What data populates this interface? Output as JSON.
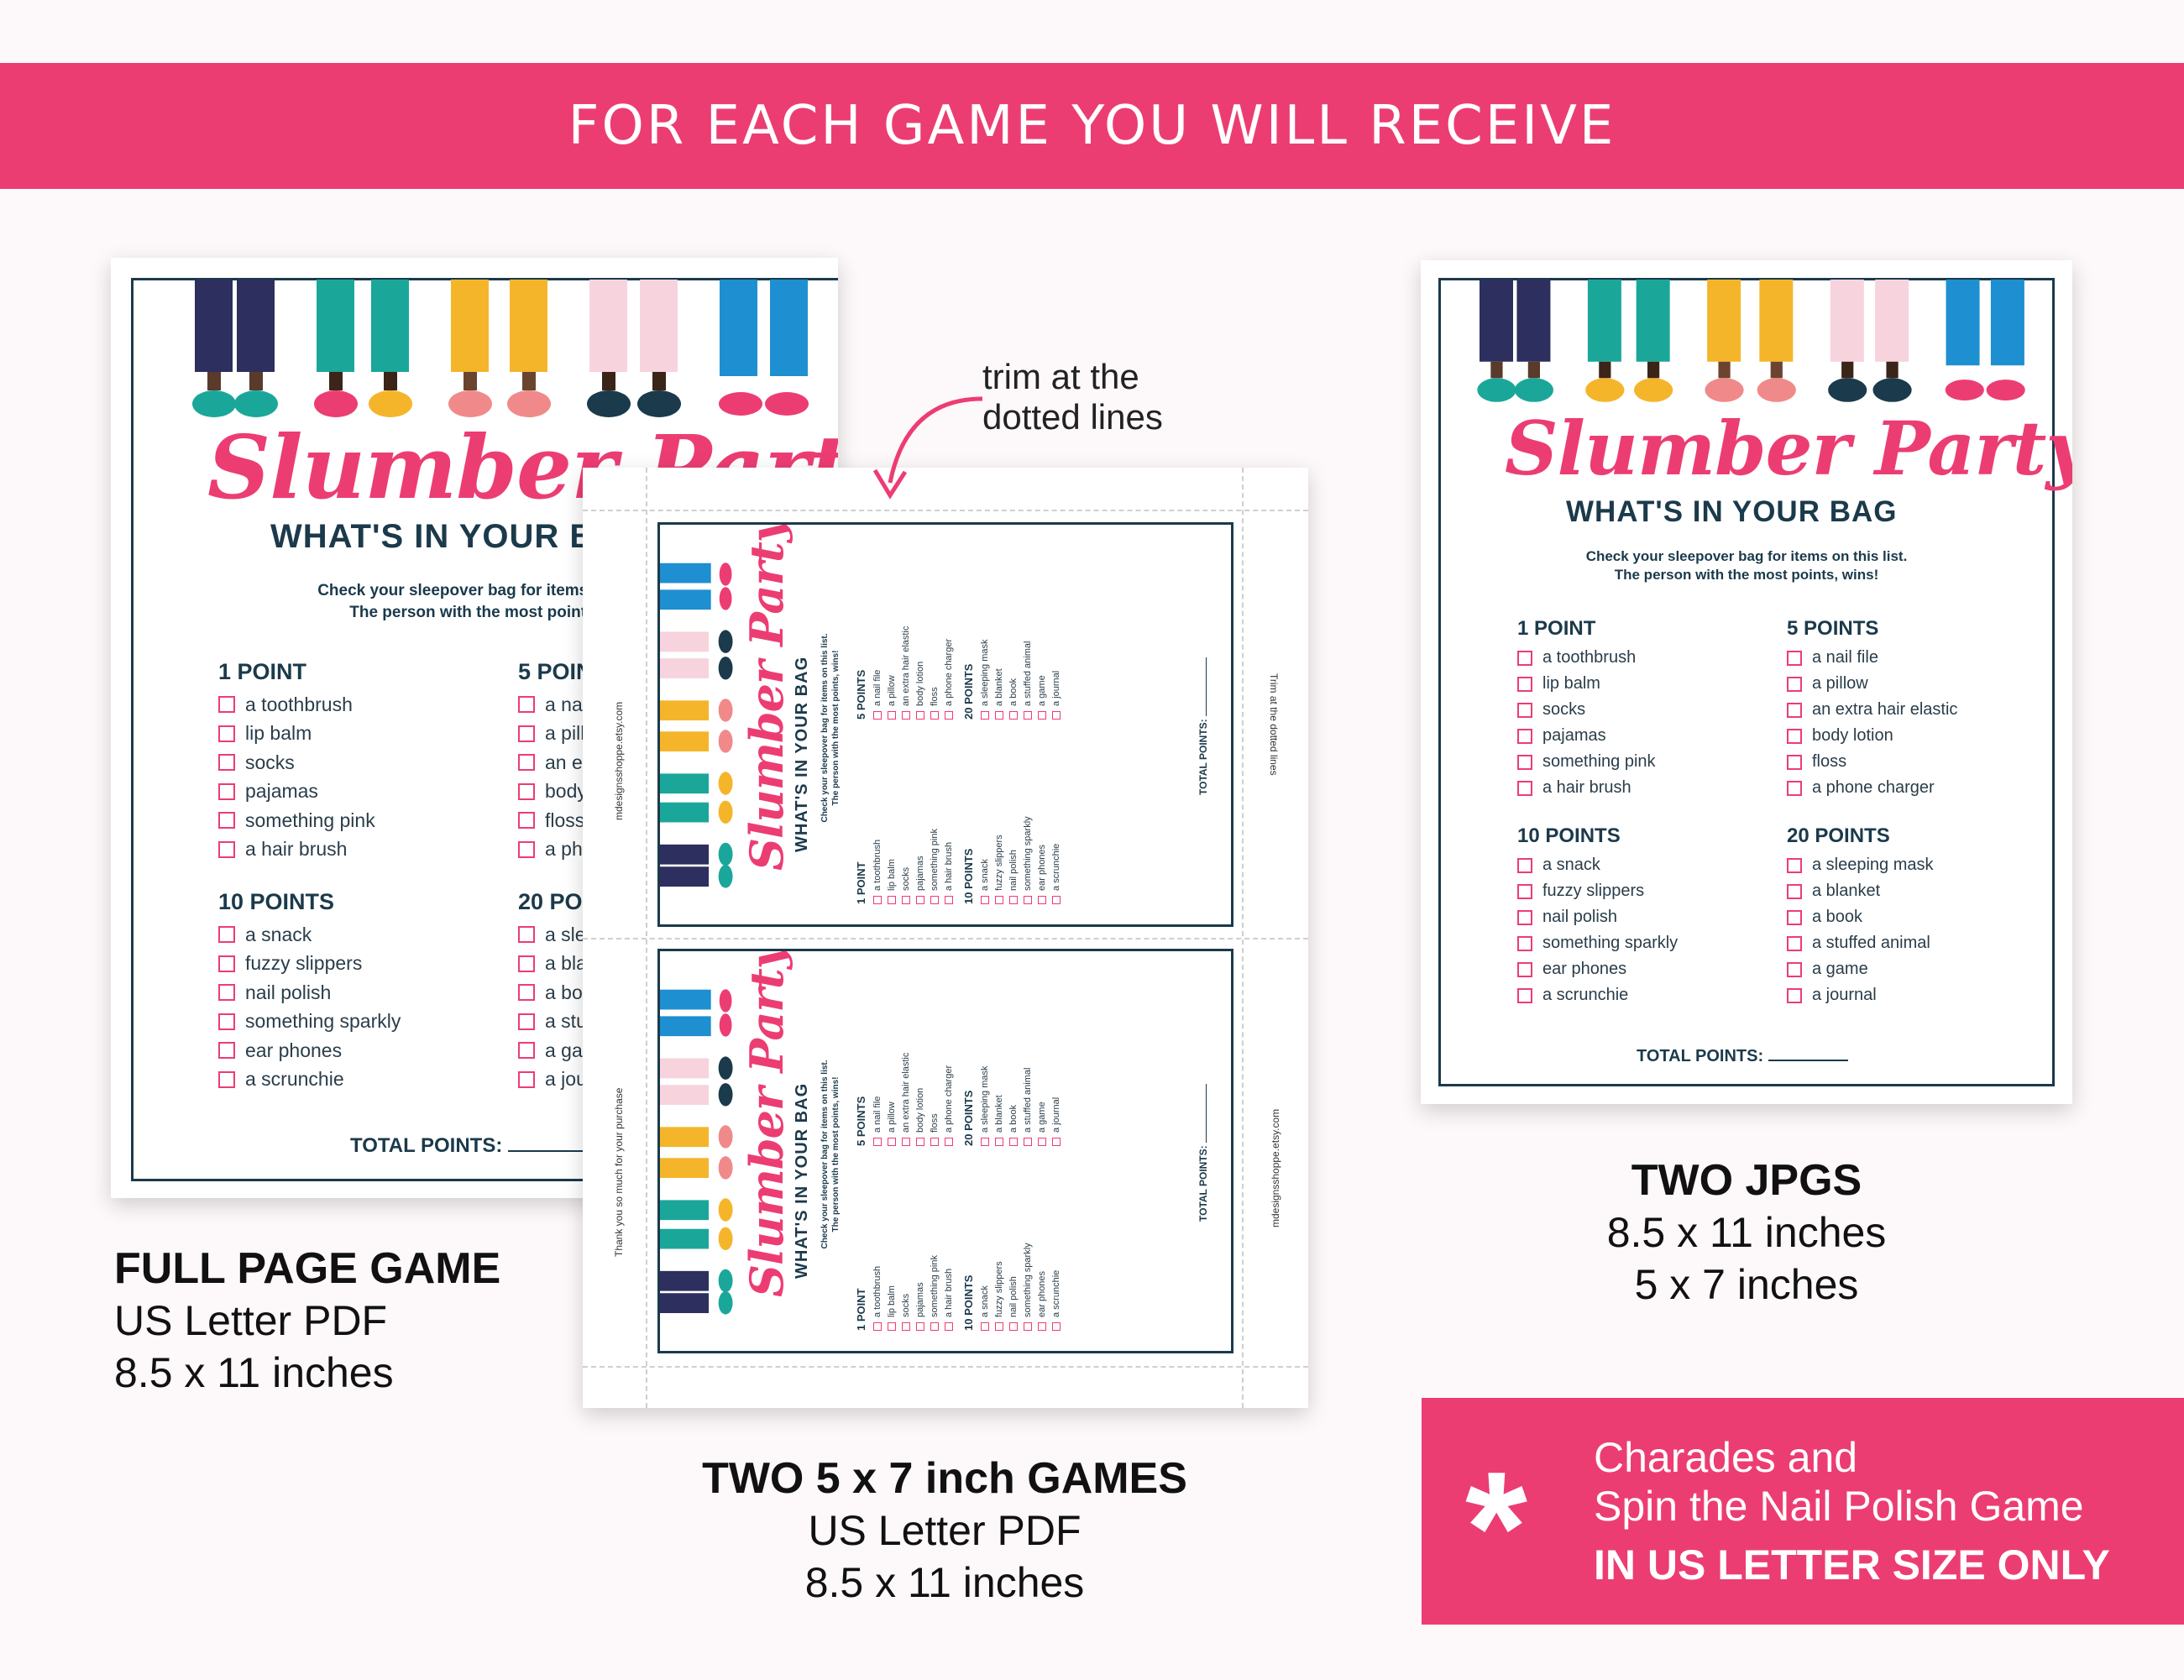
{
  "banner": {
    "title": "FOR EACH GAME YOU WILL RECEIVE"
  },
  "game": {
    "title": "Slumber Party",
    "subtitle": "WHAT'S IN YOUR BAG",
    "instructions_line1": "Check your sleepover bag for items on this list.",
    "instructions_line2": "The person with the most points, wins!",
    "sections": [
      {
        "heading": "1 POINT",
        "items": [
          "a toothbrush",
          "lip balm",
          "socks",
          "pajamas",
          "something pink",
          "a hair brush"
        ]
      },
      {
        "heading": "5 POINTS",
        "items": [
          "a nail file",
          "a pillow",
          "an extra hair elastic",
          "body lotion",
          "floss",
          "a phone charger"
        ]
      },
      {
        "heading": "10 POINTS",
        "items": [
          "a snack",
          "fuzzy slippers",
          "nail polish",
          "something sparkly",
          "ear phones",
          "a scrunchie"
        ]
      },
      {
        "heading": "20 POINTS",
        "items": [
          "a sleeping mask",
          "a blanket",
          "a book",
          "a stuffed animal",
          "a game",
          "a journal"
        ]
      }
    ],
    "total_label": "TOTAL POINTS:"
  },
  "trim_note": {
    "line1": "trim at the",
    "line2": "dotted lines"
  },
  "sheet_margin_text": {
    "etsy": "mdesignsshoppe.etsy.com",
    "thanks": "Thank you so much for your purchase",
    "trim_small": "Trim at the dotted lines"
  },
  "captions": {
    "full": {
      "title": "FULL PAGE GAME",
      "line1": "US Letter PDF",
      "line2": "8.5 x 11 inches"
    },
    "two": {
      "title": "TWO 5 x 7 inch GAMES",
      "line1": "US Letter PDF",
      "line2": "8.5 x 11 inches"
    },
    "jpgs": {
      "title": "TWO JPGS",
      "line1": "8.5 x 11 inches",
      "line2": "5 x 7 inches"
    }
  },
  "bonus": {
    "symbol": "*",
    "line1": "Charades and",
    "line2": "Spin the Nail Polish Game",
    "line3": "IN US LETTER SIZE ONLY"
  },
  "colors": {
    "pink": "#ec3d73",
    "navy": "#1b3a4b",
    "teal": "#1aa79a",
    "yellow": "#f5b52a",
    "blue": "#1e8fd0"
  }
}
